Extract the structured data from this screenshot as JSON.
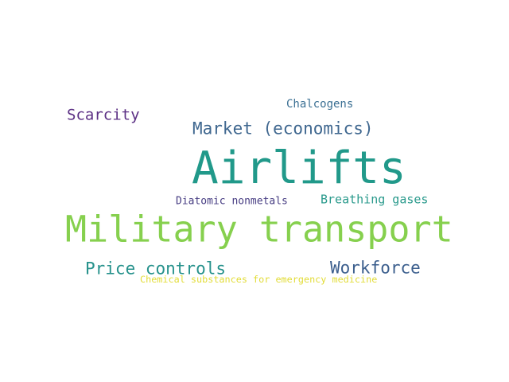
{
  "words": [
    {
      "text": "Scarcity",
      "color": "#5b2f84"
    },
    {
      "text": "Chalcogens",
      "color": "#3a6f93"
    },
    {
      "text": "Market (economics)",
      "color": "#3f678f"
    },
    {
      "text": "Airlifts",
      "color": "#21998a"
    },
    {
      "text": "Diatomic nonmetals",
      "color": "#463c82"
    },
    {
      "text": "Breathing gases",
      "color": "#2a9a8c"
    },
    {
      "text": "Military transport",
      "color": "#86d04e"
    },
    {
      "text": "Price controls",
      "color": "#27928c"
    },
    {
      "text": "Workforce",
      "color": "#3b5e8d"
    },
    {
      "text": "Chemical substances for emergency medicine",
      "color": "#e2dc36"
    }
  ]
}
